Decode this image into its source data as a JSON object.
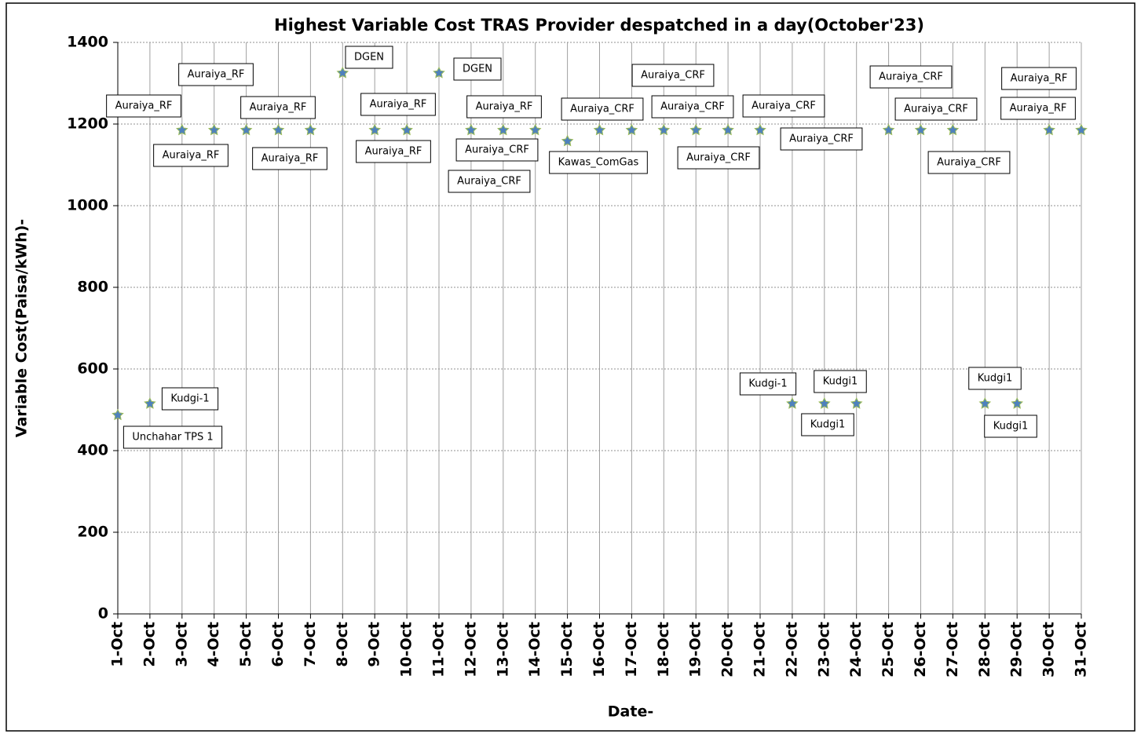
{
  "chart_data": {
    "type": "scatter",
    "title": "Highest Variable Cost TRAS Provider despatched in a day(October'23)",
    "x_label": "Date-",
    "y_label": "Variable Cost(Paisa/kWh)-",
    "categories": [
      "1-Oct",
      "2-Oct",
      "3-Oct",
      "4-Oct",
      "5-Oct",
      "6-Oct",
      "7-Oct",
      "8-Oct",
      "9-Oct",
      "10-Oct",
      "11-Oct",
      "12-Oct",
      "13-Oct",
      "14-Oct",
      "15-Oct",
      "16-Oct",
      "17-Oct",
      "18-Oct",
      "19-Oct",
      "20-Oct",
      "21-Oct",
      "22-Oct",
      "23-Oct",
      "24-Oct",
      "25-Oct",
      "26-Oct",
      "27-Oct",
      "28-Oct",
      "29-Oct",
      "30-Oct",
      "31-Oct"
    ],
    "values": [
      487,
      515,
      1185,
      1185,
      1185,
      1185,
      1185,
      1325,
      1185,
      1185,
      1325,
      1185,
      1185,
      1185,
      1158,
      1185,
      1185,
      1185,
      1185,
      1185,
      1185,
      515,
      515,
      515,
      1185,
      1185,
      1185,
      515,
      515,
      1185,
      1185
    ],
    "labels": [
      "Unchahar TPS 1",
      "Kudgi-1",
      "Auraiya_RF",
      "Auraiya_RF",
      "Auraiya_RF",
      "Auraiya_RF",
      "Auraiya_RF",
      "DGEN",
      "Auraiya_RF",
      "Auraiya_RF",
      "DGEN",
      "Auraiya_CRF",
      "Auraiya_RF",
      "Auraiya_CRF",
      "Kawas_ComGas",
      "Auraiya_CRF",
      "Auraiya_CRF",
      "Auraiya_CRF",
      "Auraiya_CRF",
      "Auraiya_CRF",
      "Auraiya_CRF",
      "Kudgi-1",
      "Kudgi1",
      "Kudgi1",
      "Auraiya_CRF",
      "Auraiya_CRF",
      "Auraiya_CRF",
      "Kudgi1",
      "Kudgi1",
      "Auraiya_RF",
      "Auraiya_RF"
    ],
    "color": "#4f81bd",
    "edge_color": "#9bbb59",
    "ylim": [
      0,
      1400
    ],
    "yticks": [
      0,
      200,
      400,
      600,
      800,
      1000,
      1200,
      1400
    ],
    "grid": true
  }
}
